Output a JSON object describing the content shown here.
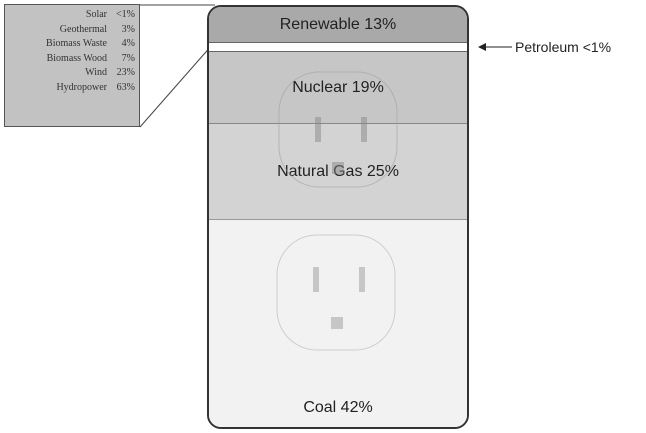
{
  "outlet": {
    "segments": [
      {
        "label": "Renewable 13%"
      },
      {
        "label": "Nuclear 19%"
      },
      {
        "label": "Natural Gas 25%"
      },
      {
        "label": "Coal 42%"
      }
    ],
    "petroleum": {
      "label": "Petroleum <1%"
    }
  },
  "renewable_breakdown": {
    "rows": [
      {
        "name": "Solar",
        "value": "<1%"
      },
      {
        "name": "Geothermal",
        "value": "3%"
      },
      {
        "name": "Biomass Waste",
        "value": "4%"
      },
      {
        "name": "Biomass Wood",
        "value": "7%"
      },
      {
        "name": "Wind",
        "value": "23%"
      },
      {
        "name": "Hydropower",
        "value": "63%"
      }
    ]
  }
}
